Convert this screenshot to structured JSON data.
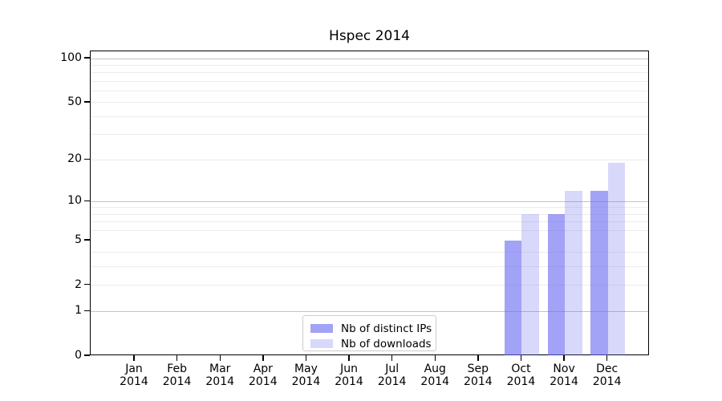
{
  "title": "Hspec 2014",
  "chart_data": {
    "type": "bar",
    "title": "Hspec 2014",
    "categories": [
      "Jan",
      "Feb",
      "Mar",
      "Apr",
      "May",
      "Jun",
      "Jul",
      "Aug",
      "Sep",
      "Oct",
      "Nov",
      "Dec"
    ],
    "category_year": "2014",
    "series": [
      {
        "name": "Nb of distinct IPs",
        "color": "rgba(100,100,240,0.60)",
        "values": [
          0,
          0,
          0,
          0,
          0,
          0,
          0,
          0,
          0,
          5,
          8,
          12
        ]
      },
      {
        "name": "Nb of downloads",
        "color": "rgba(100,100,240,0.25)",
        "values": [
          0,
          0,
          0,
          0,
          0,
          0,
          0,
          0,
          0,
          8,
          12,
          19
        ]
      }
    ],
    "xlabel": "",
    "ylabel": "",
    "yscale": "log1p",
    "ylim": [
      0,
      112
    ],
    "yticks": [
      0,
      1,
      2,
      5,
      10,
      20,
      50,
      100
    ],
    "major_gridlines": [
      1,
      10,
      100
    ],
    "minor_gridlines": [
      2,
      3,
      4,
      6,
      7,
      8,
      9,
      20,
      30,
      40,
      50,
      60,
      70,
      80,
      90
    ],
    "grid": true,
    "legend_position": "lower center"
  },
  "colors": {
    "spine": "#000000",
    "major_grid": "#c3c3c3",
    "minor_grid": "#ececec",
    "labeled_grid": "#e0e0e0",
    "text": "#000000",
    "legend_border": "#cccccc",
    "background": "#ffffff"
  }
}
